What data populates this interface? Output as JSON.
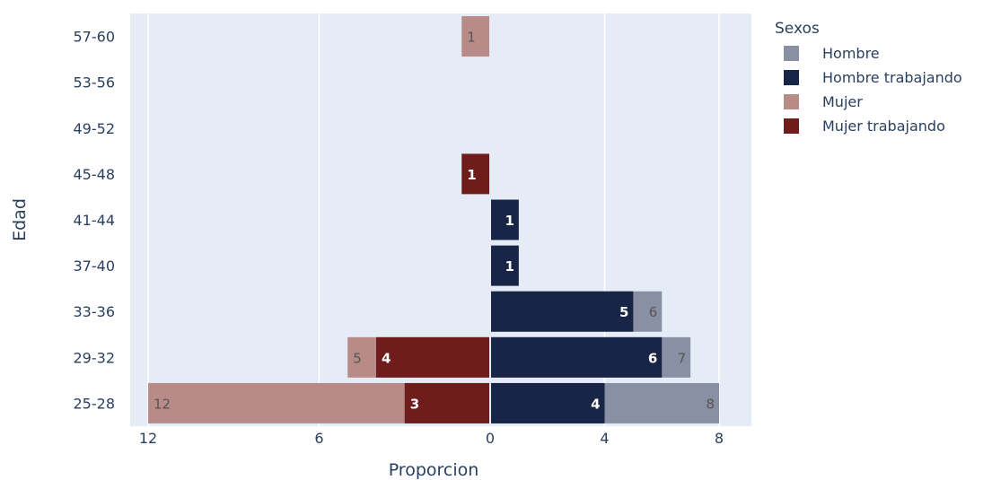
{
  "chart_data": {
    "type": "bar",
    "orientation": "horizontal",
    "barmode": "overlay",
    "xlabel": "Proporcion",
    "ylabel": "Edad",
    "categories": [
      "25-28",
      "29-32",
      "33-36",
      "37-40",
      "41-44",
      "45-48",
      "49-52",
      "53-56",
      "57-60"
    ],
    "x_ticks": [
      {
        "value": -12,
        "label": "12"
      },
      {
        "value": -6,
        "label": "6"
      },
      {
        "value": 0,
        "label": "0"
      },
      {
        "value": 4,
        "label": "4"
      },
      {
        "value": 8,
        "label": "8"
      }
    ],
    "xlim": [
      -12.6,
      9.1
    ],
    "grid": true,
    "legend": {
      "title": "Sexos",
      "position": "top-right",
      "items": [
        {
          "label": "Hombre",
          "color": "#8a90a3"
        },
        {
          "label": "Hombre trabajando",
          "color": "#182546"
        },
        {
          "label": "Mujer",
          "color": "#b88a88"
        },
        {
          "label": "Mujer trabajando",
          "color": "#6e1c1c"
        }
      ]
    },
    "series": [
      {
        "name": "Hombre",
        "color": "#8a90a3",
        "label_color": "#555555",
        "label_bold": false,
        "label_side": "right",
        "values": [
          8,
          7,
          6,
          0,
          0,
          0,
          0,
          0,
          0
        ],
        "labels": [
          "8",
          "7",
          "6",
          "",
          "",
          "",
          "",
          "",
          ""
        ]
      },
      {
        "name": "Hombre trabajando",
        "color": "#182546",
        "label_color": "#ffffff",
        "label_bold": true,
        "label_side": "right",
        "values": [
          4,
          6,
          5,
          1,
          1,
          0,
          0,
          0,
          0
        ],
        "labels": [
          "4",
          "6",
          "5",
          "1",
          "1",
          "",
          "",
          "",
          ""
        ]
      },
      {
        "name": "Mujer",
        "color": "#b88a88",
        "label_color": "#555555",
        "label_bold": false,
        "label_side": "left",
        "values": [
          -12,
          -5,
          0,
          0,
          0,
          0,
          0,
          0,
          -1
        ],
        "labels": [
          "12",
          "5",
          "",
          "",
          "",
          "",
          "",
          "",
          "1"
        ]
      },
      {
        "name": "Mujer trabajando",
        "color": "#6e1c1c",
        "label_color": "#ffffff",
        "label_bold": true,
        "label_side": "left",
        "values": [
          -3,
          -4,
          0,
          0,
          0,
          -1,
          0,
          0,
          0
        ],
        "labels": [
          "3",
          "4",
          "",
          "",
          "",
          "1",
          "",
          "",
          ""
        ]
      }
    ]
  }
}
